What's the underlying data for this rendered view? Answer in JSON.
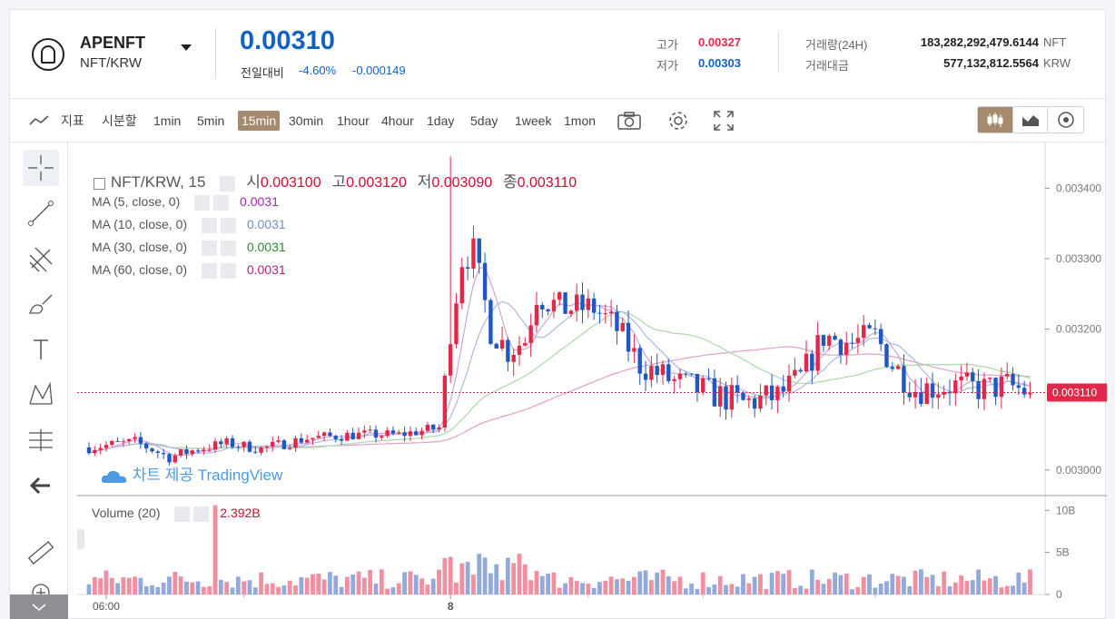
{
  "header": {
    "coin_name": "APENFT",
    "pair": "NFT/KRW",
    "price": "0.00310",
    "change_label": "전일대비",
    "change_pct": "-4.60%",
    "change_abs": "-0.000149",
    "high_label": "고가",
    "high_value": "0.00327",
    "low_label": "저가",
    "low_value": "0.00303",
    "volume_label": "거래량(24H)",
    "volume_value": "183,282,292,479.6144",
    "volume_unit": "NFT",
    "amount_label": "거래대금",
    "amount_value": "577,132,812.5564",
    "amount_unit": "KRW"
  },
  "toolbar": {
    "indicator_label": "지표",
    "split_label": "시분할",
    "intervals": [
      "1min",
      "5min",
      "15min",
      "30min",
      "1hour",
      "4hour",
      "1day",
      "5day",
      "1week",
      "1mon"
    ],
    "active_interval": "15min"
  },
  "legend": {
    "symbol": "NFT/KRW, 15",
    "open_label": "시",
    "open_value": "0.003100",
    "high_label": "고",
    "high_value": "0.003120",
    "low_label": "저",
    "low_value": "0.003090",
    "close_label": "종",
    "close_value": "0.003110",
    "ma": [
      {
        "name": "MA (5, close, 0)",
        "value": "0.0031",
        "color": "#9c27b0"
      },
      {
        "name": "MA (10, close, 0)",
        "value": "0.0031",
        "color": "#6f8fc7"
      },
      {
        "name": "MA (30, close, 0)",
        "value": "0.0031",
        "color": "#2e8b2e"
      },
      {
        "name": "MA (60, close, 0)",
        "value": "0.0031",
        "color": "#b0257a"
      }
    ],
    "volume_name": "Volume (20)",
    "volume_value": "2.392B",
    "tv_logo_text": "차트 제공 TradingView"
  },
  "colors": {
    "up": "#e0284a",
    "down": "#1f58c2",
    "accent": "#a58a6d",
    "ma5": "#c9a6d8",
    "ma10": "#a9b9e0",
    "ma30": "#a9d8a9",
    "ma60": "#e0a0c8"
  },
  "chart_data": [
    {
      "type": "candlestick",
      "title": "NFT/KRW, 15",
      "y_ticks": [
        "0.003400",
        "0.003300",
        "0.003200",
        "0.003000"
      ],
      "ylim": [
        0.002965,
        0.003465
      ],
      "x_ticks": [
        {
          "label": "06:00",
          "i": 3
        },
        {
          "label": "8",
          "i": 63
        }
      ],
      "last_price": "0.003110",
      "last_value": 0.00311,
      "key_points": [
        [
          0,
          0.003032
        ],
        [
          8,
          0.00304
        ],
        [
          14,
          0.003018
        ],
        [
          19,
          0.00303
        ],
        [
          24,
          0.003038
        ],
        [
          30,
          0.00303
        ],
        [
          38,
          0.003045
        ],
        [
          46,
          0.00305
        ],
        [
          54,
          0.00305
        ],
        [
          61,
          0.00306
        ],
        [
          63,
          0.0032
        ],
        [
          65,
          0.0033
        ],
        [
          67,
          0.00331
        ],
        [
          70,
          0.0032
        ],
        [
          73,
          0.00317
        ],
        [
          76,
          0.003185
        ],
        [
          78,
          0.00325
        ],
        [
          82,
          0.00323
        ],
        [
          88,
          0.00323
        ],
        [
          92,
          0.0032
        ],
        [
          96,
          0.00315
        ],
        [
          102,
          0.003125
        ],
        [
          108,
          0.00311
        ],
        [
          114,
          0.003095
        ],
        [
          120,
          0.003105
        ],
        [
          124,
          0.00313
        ],
        [
          128,
          0.00319
        ],
        [
          133,
          0.00318
        ],
        [
          137,
          0.00319
        ],
        [
          140,
          0.00315
        ],
        [
          144,
          0.003115
        ],
        [
          150,
          0.00312
        ],
        [
          156,
          0.003115
        ],
        [
          160,
          0.00312
        ],
        [
          164,
          0.00311
        ]
      ]
    },
    {
      "type": "bar",
      "title": "Volume (20)",
      "y_ticks": [
        "10B",
        "5B",
        "0"
      ],
      "ylim": [
        0,
        11
      ]
    }
  ]
}
